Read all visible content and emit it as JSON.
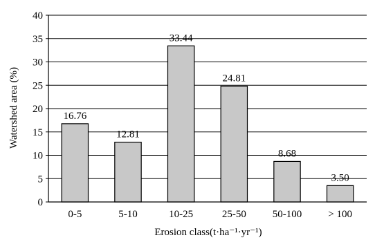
{
  "chart_data": {
    "type": "bar",
    "title": "",
    "xlabel": "Erosion class(t·ha⁻¹·yr⁻¹)",
    "ylabel": "Watershed area (%)",
    "categories": [
      "0-5",
      "5-10",
      "10-25",
      "25-50",
      "50-100",
      "> 100"
    ],
    "values": [
      16.76,
      12.81,
      33.44,
      24.81,
      8.68,
      3.5
    ],
    "data_labels": [
      "16.76",
      "12.81",
      "33.44",
      "24.81",
      "8.68",
      "3.50"
    ],
    "ylim": [
      0,
      40
    ],
    "yticks": [
      0,
      5,
      10,
      15,
      20,
      25,
      30,
      35,
      40
    ],
    "grid": "horizontal",
    "legend": "none",
    "colors": {
      "bar_fill": "#c8c8c8",
      "bar_stroke": "#000000",
      "grid": "#000000",
      "axis": "#000000"
    }
  }
}
